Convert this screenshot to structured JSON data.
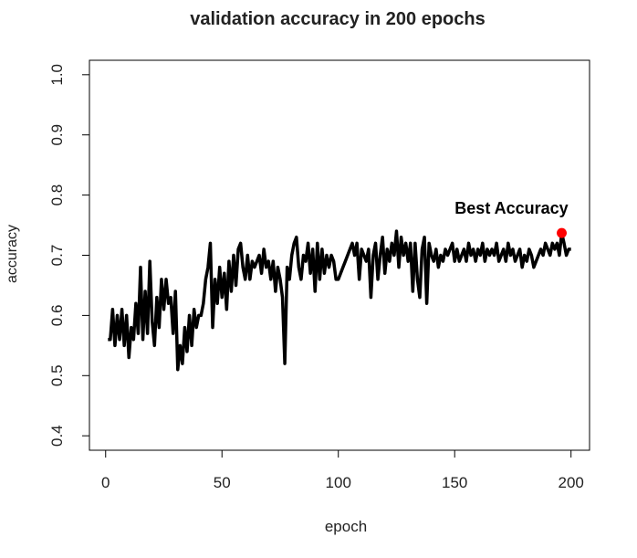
{
  "chart_data": {
    "type": "line",
    "title": "validation accuracy in 200 epochs",
    "x_label": "epoch",
    "y_label": "accuracy",
    "color": "#000000",
    "x": [
      1,
      2,
      3,
      4,
      5,
      6,
      7,
      8,
      9,
      10,
      11,
      12,
      13,
      14,
      15,
      16,
      17,
      18,
      19,
      20,
      21,
      22,
      23,
      24,
      25,
      26,
      27,
      28,
      29,
      30,
      31,
      32,
      33,
      34,
      35,
      36,
      37,
      38,
      39,
      40,
      41,
      42,
      43,
      44,
      45,
      46,
      47,
      48,
      49,
      50,
      51,
      52,
      53,
      54,
      55,
      56,
      57,
      58,
      59,
      60,
      61,
      62,
      63,
      64,
      65,
      66,
      67,
      68,
      69,
      70,
      71,
      72,
      73,
      74,
      75,
      76,
      77,
      78,
      79,
      80,
      81,
      82,
      83,
      84,
      85,
      86,
      87,
      88,
      89,
      90,
      91,
      92,
      93,
      94,
      95,
      96,
      97,
      98,
      99,
      100,
      101,
      102,
      103,
      104,
      105,
      106,
      107,
      108,
      109,
      110,
      111,
      112,
      113,
      114,
      115,
      116,
      117,
      118,
      119,
      120,
      121,
      122,
      123,
      124,
      125,
      126,
      127,
      128,
      129,
      130,
      131,
      132,
      133,
      134,
      135,
      136,
      137,
      138,
      139,
      140,
      141,
      142,
      143,
      144,
      145,
      146,
      147,
      148,
      149,
      150,
      151,
      152,
      153,
      154,
      155,
      156,
      157,
      158,
      159,
      160,
      161,
      162,
      163,
      164,
      165,
      166,
      167,
      168,
      169,
      170,
      171,
      172,
      173,
      174,
      175,
      176,
      177,
      178,
      179,
      180,
      181,
      182,
      183,
      184,
      185,
      186,
      187,
      188,
      189,
      190,
      191,
      192,
      193,
      194,
      195,
      196,
      197,
      198,
      199,
      200
    ],
    "values": [
      0.56,
      0.56,
      0.61,
      0.55,
      0.6,
      0.56,
      0.61,
      0.55,
      0.6,
      0.53,
      0.58,
      0.56,
      0.62,
      0.57,
      0.68,
      0.56,
      0.64,
      0.57,
      0.69,
      0.59,
      0.55,
      0.63,
      0.58,
      0.66,
      0.61,
      0.66,
      0.62,
      0.63,
      0.57,
      0.64,
      0.51,
      0.55,
      0.52,
      0.58,
      0.54,
      0.6,
      0.55,
      0.61,
      0.58,
      0.6,
      0.6,
      0.62,
      0.66,
      0.68,
      0.72,
      0.58,
      0.66,
      0.62,
      0.68,
      0.63,
      0.67,
      0.61,
      0.69,
      0.64,
      0.7,
      0.65,
      0.71,
      0.72,
      0.68,
      0.66,
      0.7,
      0.66,
      0.69,
      0.68,
      0.69,
      0.7,
      0.67,
      0.71,
      0.68,
      0.69,
      0.66,
      0.69,
      0.64,
      0.68,
      0.66,
      0.63,
      0.52,
      0.68,
      0.66,
      0.7,
      0.72,
      0.73,
      0.68,
      0.66,
      0.7,
      0.69,
      0.72,
      0.67,
      0.71,
      0.64,
      0.72,
      0.66,
      0.71,
      0.67,
      0.7,
      0.68,
      0.7,
      0.69,
      0.66,
      0.66,
      0.67,
      0.68,
      0.69,
      0.7,
      0.71,
      0.72,
      0.7,
      0.72,
      0.66,
      0.71,
      0.7,
      0.69,
      0.71,
      0.63,
      0.7,
      0.72,
      0.66,
      0.7,
      0.73,
      0.67,
      0.71,
      0.69,
      0.72,
      0.7,
      0.74,
      0.68,
      0.73,
      0.7,
      0.72,
      0.69,
      0.72,
      0.64,
      0.72,
      0.66,
      0.63,
      0.71,
      0.73,
      0.62,
      0.72,
      0.7,
      0.69,
      0.71,
      0.68,
      0.7,
      0.69,
      0.71,
      0.7,
      0.71,
      0.72,
      0.69,
      0.71,
      0.69,
      0.7,
      0.71,
      0.69,
      0.72,
      0.7,
      0.71,
      0.69,
      0.71,
      0.7,
      0.72,
      0.69,
      0.71,
      0.7,
      0.71,
      0.7,
      0.72,
      0.69,
      0.7,
      0.71,
      0.69,
      0.72,
      0.7,
      0.71,
      0.69,
      0.7,
      0.71,
      0.68,
      0.7,
      0.69,
      0.71,
      0.7,
      0.68,
      0.69,
      0.7,
      0.71,
      0.7,
      0.72,
      0.71,
      0.7,
      0.72,
      0.71,
      0.72,
      0.7,
      0.737,
      0.72,
      0.7,
      0.71,
      0.71
    ],
    "best": {
      "x": 196,
      "y": 0.737,
      "label": "Best Accuracy",
      "color": "#ff0000"
    },
    "xlim": [
      -6.96,
      207.96
    ],
    "xticks": [
      0,
      50,
      100,
      150,
      200
    ],
    "ylim": [
      0.376,
      1.024
    ],
    "yticks": [
      0.4,
      0.5,
      0.6,
      0.7,
      0.8,
      0.9,
      {
        "value": 1,
        "label": "1.0"
      }
    ]
  }
}
